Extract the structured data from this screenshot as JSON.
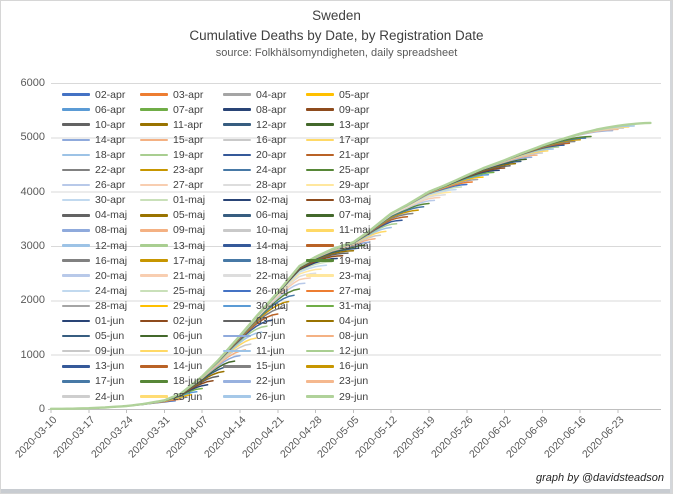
{
  "page": {
    "footer_credit": "graph by @davidsteadson"
  },
  "chart_data": {
    "type": "line",
    "title": "Sweden",
    "subtitle": "Cumulative Deaths by Date, by Registration Date",
    "source_note": "source: Folkhälsomyndigheten, daily spreadsheet",
    "xlabel": "",
    "ylabel": "",
    "ylim": [
      0,
      6000
    ],
    "y_tick_values": [
      0,
      1000,
      2000,
      3000,
      4000,
      5000,
      6000
    ],
    "x_anchor_date": "2020-03-10",
    "x_tick_labels": [
      "2020-03-10",
      "2020-03-17",
      "2020-03-24",
      "2020-03-31",
      "2020-04-07",
      "2020-04-14",
      "2020-04-21",
      "2020-04-28",
      "2020-05-05",
      "2020-05-12",
      "2020-05-19",
      "2020-05-26",
      "2020-06-02",
      "2020-06-09",
      "2020-06-16",
      "2020-06-23"
    ],
    "grid": "horizontal",
    "legend_position": "upper-left-overlay",
    "legend_columns": 4,
    "series_labels": [
      "02-apr",
      "03-apr",
      "04-apr",
      "05-apr",
      "06-apr",
      "07-apr",
      "08-apr",
      "09-apr",
      "10-apr",
      "11-apr",
      "12-apr",
      "13-apr",
      "14-apr",
      "15-apr",
      "16-apr",
      "17-apr",
      "18-apr",
      "19-apr",
      "20-apr",
      "21-apr",
      "22-apr",
      "23-apr",
      "24-apr",
      "25-apr",
      "26-apr",
      "27-apr",
      "28-apr",
      "29-apr",
      "30-apr",
      "01-maj",
      "02-maj",
      "03-maj",
      "04-maj",
      "05-maj",
      "06-maj",
      "07-maj",
      "08-maj",
      "09-maj",
      "10-maj",
      "11-maj",
      "12-maj",
      "13-maj",
      "14-maj",
      "15-maj",
      "16-maj",
      "17-maj",
      "18-maj",
      "19-maj",
      "20-maj",
      "21-maj",
      "22-maj",
      "23-maj",
      "24-maj",
      "25-maj",
      "26-maj",
      "27-maj",
      "28-maj",
      "29-maj",
      "30-maj",
      "31-maj",
      "01-jun",
      "02-jun",
      "03-jun",
      "04-jun",
      "05-jun",
      "06-jun",
      "07-jun",
      "08-jun",
      "09-jun",
      "10-jun",
      "11-jun",
      "12-jun",
      "13-jun",
      "14-jun",
      "15-jun",
      "16-jun",
      "17-jun",
      "18-jun",
      "22-jun",
      "23-jun",
      "24-jun",
      "25-jun",
      "26-jun",
      "29-jun"
    ],
    "final_curve": {
      "comment": "Final (29-jun) cumulative deaths-by-date envelope; day offsets from 2020-03-10, values read off gridlines",
      "day_offsets": [
        0,
        4,
        7,
        10,
        14,
        17,
        21,
        24,
        28,
        31,
        35,
        38,
        42,
        46,
        49,
        52,
        56,
        59,
        63,
        66,
        70,
        73,
        77,
        80,
        84,
        87,
        91,
        94,
        98,
        101,
        105,
        108,
        111
      ],
      "values": [
        3,
        6,
        15,
        28,
        55,
        90,
        160,
        280,
        600,
        900,
        1350,
        1700,
        2150,
        2630,
        2800,
        2940,
        3070,
        3280,
        3600,
        3760,
        4000,
        4120,
        4300,
        4430,
        4580,
        4700,
        4850,
        4950,
        5070,
        5150,
        5230,
        5280,
        5330
      ]
    },
    "reporting_delay_model": {
      "tau_days": 3.8,
      "offset_days": 0.7
    },
    "palette_base": [
      "#4472C4",
      "#ED7D31",
      "#A5A5A5",
      "#FFC000",
      "#5B9BD5",
      "#70AD47"
    ],
    "palette_block_ops": [
      [
        "none",
        0
      ],
      [
        "shade",
        0.6
      ],
      [
        "tint",
        0.4
      ],
      [
        "shade",
        0.78
      ],
      [
        "tint",
        0.62
      ],
      [
        "shade",
        0.6
      ],
      [
        "tint",
        0.4
      ],
      [
        "shade",
        0.78
      ],
      [
        "tint",
        0.62
      ],
      [
        "none",
        0
      ],
      [
        "shade",
        0.6
      ],
      [
        "tint",
        0.4
      ],
      [
        "shade",
        0.78
      ],
      [
        "tint",
        0.45
      ]
    ],
    "grid_color": "#D9D9D9",
    "axis_line_color": "#BFBFBF",
    "axis_text_color": "#595959",
    "text_color": "#404040"
  }
}
